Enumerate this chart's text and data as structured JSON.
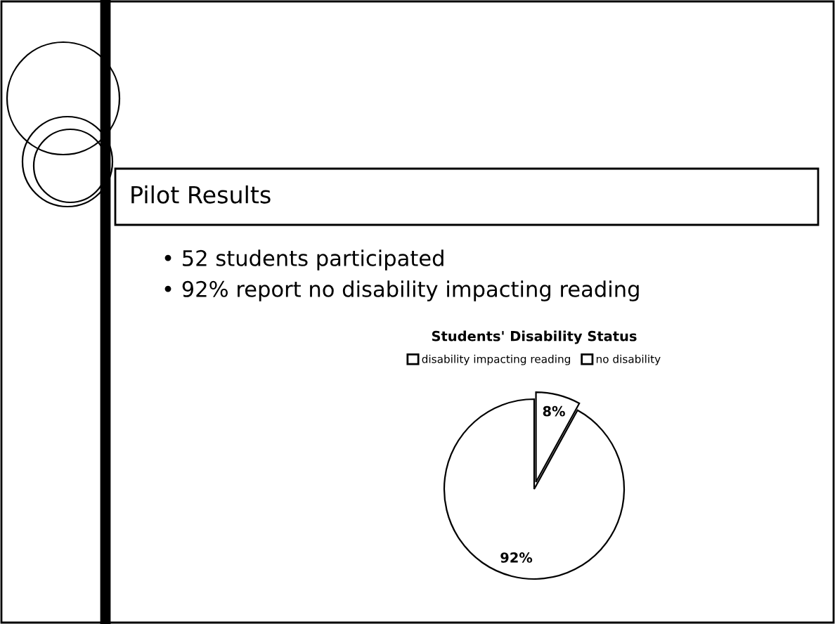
{
  "chart_data": {
    "type": "pie",
    "title": "Students' Disability Status",
    "categories": [
      "disability impacting reading",
      "no disability"
    ],
    "values": [
      8,
      92
    ],
    "colors": [
      "#ffffff",
      "#ffffff"
    ],
    "value_labels": [
      "8%",
      "92%"
    ],
    "legend": "top",
    "annotations": [
      "Pilot Results",
      "• 52 students participated",
      "• 92% report no disability impacting reading"
    ]
  }
}
